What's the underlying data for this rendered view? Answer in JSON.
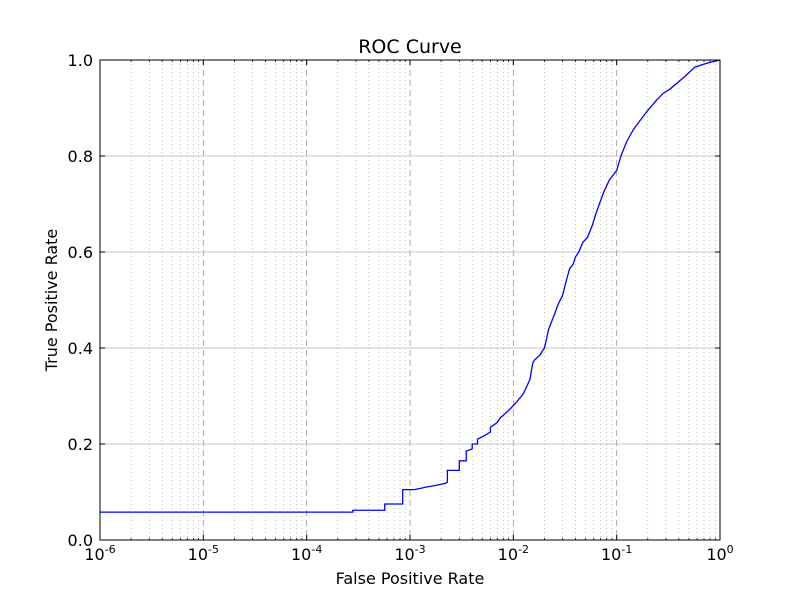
{
  "chart_data": {
    "type": "line",
    "title": "ROC Curve",
    "xlabel": "False Positive Rate",
    "ylabel": "True Positive Rate",
    "xscale": "log",
    "xlim": [
      1e-06,
      1
    ],
    "ylim": [
      0,
      1
    ],
    "x_ticks": [
      {
        "base": "10",
        "exp": "-6"
      },
      {
        "base": "10",
        "exp": "-5"
      },
      {
        "base": "10",
        "exp": "-4"
      },
      {
        "base": "10",
        "exp": "-3"
      },
      {
        "base": "10",
        "exp": "-2"
      },
      {
        "base": "10",
        "exp": "-1"
      },
      {
        "base": "10",
        "exp": "0"
      }
    ],
    "y_ticks": [
      "0.0",
      "0.2",
      "0.4",
      "0.6",
      "0.8",
      "1.0"
    ],
    "grid": {
      "x_major": "dashed",
      "x_minor": "dotted",
      "y_major": "solid"
    },
    "series": [
      {
        "color": "#0000ff",
        "x": [
          1e-06,
          0.00028,
          0.00028,
          0.00057,
          0.00057,
          0.00085,
          0.00085,
          0.0011,
          0.0013,
          0.0014,
          0.0016,
          0.0019,
          0.0022,
          0.0023,
          0.0023,
          0.003,
          0.003,
          0.0035,
          0.0035,
          0.004,
          0.004,
          0.0045,
          0.0045,
          0.005,
          0.0055,
          0.006,
          0.006,
          0.0065,
          0.007,
          0.0075,
          0.008,
          0.009,
          0.0095,
          0.0105,
          0.0115,
          0.0125,
          0.0135,
          0.0145,
          0.015,
          0.0155,
          0.016,
          0.017,
          0.018,
          0.02,
          0.021,
          0.022,
          0.023,
          0.025,
          0.027,
          0.03,
          0.033,
          0.035,
          0.038,
          0.04,
          0.043,
          0.047,
          0.052,
          0.058,
          0.063,
          0.068,
          0.075,
          0.085,
          0.1,
          0.11,
          0.125,
          0.145,
          0.17,
          0.2,
          0.24,
          0.28,
          0.33,
          0.4,
          0.48,
          0.57,
          0.67,
          0.8,
          1.0
        ],
        "y": [
          0.058,
          0.058,
          0.062,
          0.062,
          0.075,
          0.075,
          0.105,
          0.105,
          0.108,
          0.11,
          0.112,
          0.115,
          0.118,
          0.12,
          0.145,
          0.145,
          0.165,
          0.165,
          0.185,
          0.19,
          0.2,
          0.2,
          0.21,
          0.215,
          0.22,
          0.225,
          0.235,
          0.24,
          0.245,
          0.255,
          0.26,
          0.27,
          0.275,
          0.285,
          0.295,
          0.305,
          0.32,
          0.335,
          0.355,
          0.37,
          0.375,
          0.38,
          0.385,
          0.4,
          0.42,
          0.44,
          0.45,
          0.47,
          0.49,
          0.51,
          0.545,
          0.565,
          0.575,
          0.59,
          0.6,
          0.62,
          0.63,
          0.655,
          0.68,
          0.7,
          0.725,
          0.75,
          0.77,
          0.8,
          0.83,
          0.855,
          0.875,
          0.895,
          0.915,
          0.93,
          0.94,
          0.955,
          0.97,
          0.985,
          0.99,
          0.995,
          1.0
        ]
      }
    ]
  }
}
